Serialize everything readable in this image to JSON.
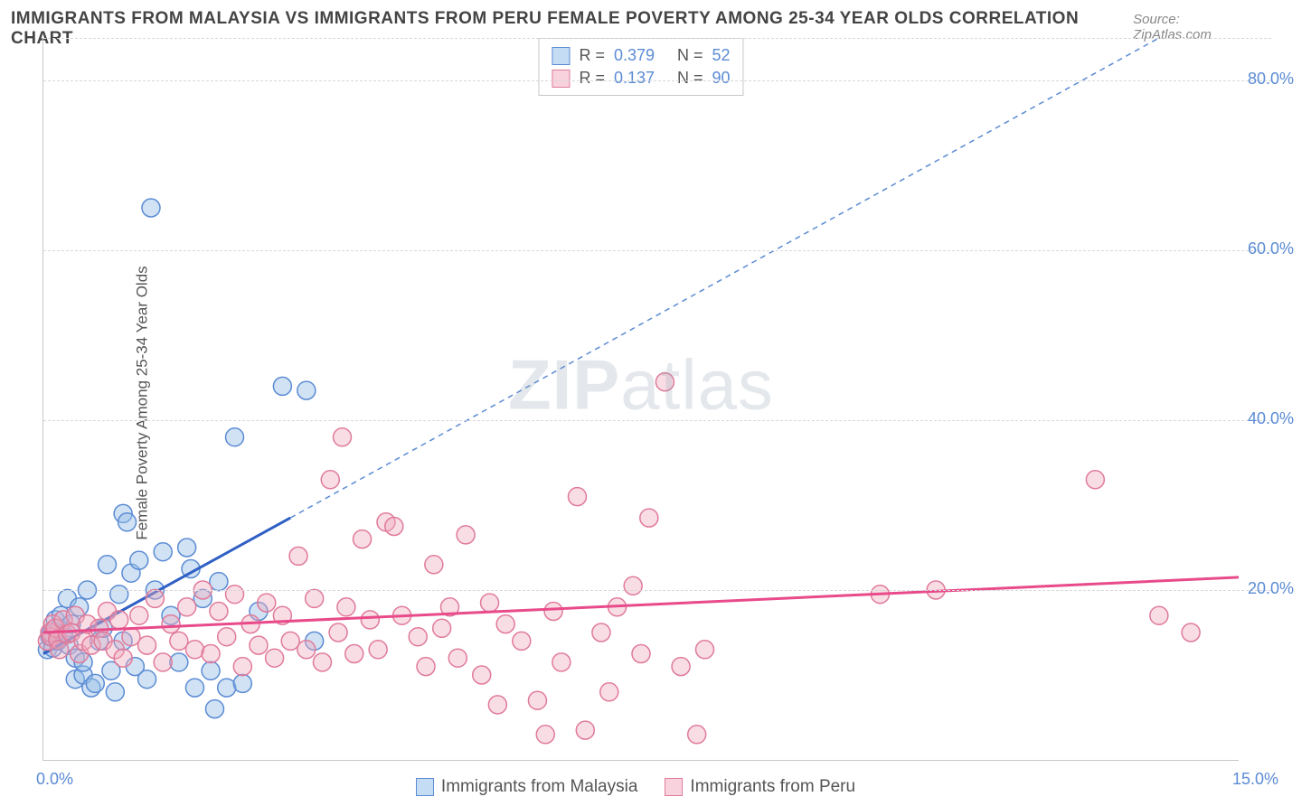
{
  "title": "IMMIGRANTS FROM MALAYSIA VS IMMIGRANTS FROM PERU FEMALE POVERTY AMONG 25-34 YEAR OLDS CORRELATION CHART",
  "source": "Source: ZipAtlas.com",
  "ylabel": "Female Poverty Among 25-34 Year Olds",
  "watermark_bold": "ZIP",
  "watermark_rest": "atlas",
  "chart": {
    "type": "scatter",
    "xlim": [
      0.0,
      15.0
    ],
    "ylim": [
      0.0,
      85.0
    ],
    "x_ticks": [
      {
        "value": 0.0,
        "label": "0.0%"
      },
      {
        "value": 15.0,
        "label": "15.0%"
      }
    ],
    "y_ticks": [
      {
        "value": 20.0,
        "label": "20.0%"
      },
      {
        "value": 40.0,
        "label": "40.0%"
      },
      {
        "value": 60.0,
        "label": "60.0%"
      },
      {
        "value": 80.0,
        "label": "80.0%"
      }
    ],
    "background_color": "#ffffff",
    "grid_color": "#d8d8d8",
    "marker_radius": 10,
    "marker_stroke_width": 1.5,
    "series": [
      {
        "id": "malaysia",
        "label": "Immigrants from Malaysia",
        "color_fill": "rgba(150,190,230,0.45)",
        "color_stroke": "#5b8bd4",
        "swatch_fill": "#c5ddf4",
        "swatch_stroke": "#5b8bd4",
        "R": "0.379",
        "N": "52",
        "trend_solid": {
          "x1": 0.0,
          "y1": 12.5,
          "x2": 3.1,
          "y2": 28.5,
          "color": "#2f5fc4",
          "width": 3
        },
        "trend_dashed": {
          "x1": 3.1,
          "y1": 28.5,
          "x2": 14.0,
          "y2": 85.0,
          "color": "#5b8bd4",
          "width": 1.5,
          "dash": "6,5"
        },
        "points": [
          [
            0.05,
            13.0
          ],
          [
            0.08,
            14.5
          ],
          [
            0.1,
            15.0
          ],
          [
            0.12,
            13.2
          ],
          [
            0.15,
            16.5
          ],
          [
            0.18,
            14.0
          ],
          [
            0.2,
            15.5
          ],
          [
            0.22,
            17.0
          ],
          [
            0.25,
            14.8
          ],
          [
            0.3,
            19.0
          ],
          [
            0.32,
            13.5
          ],
          [
            0.35,
            16.0
          ],
          [
            0.4,
            9.5
          ],
          [
            0.4,
            12.0
          ],
          [
            0.45,
            18.0
          ],
          [
            0.5,
            10.0
          ],
          [
            0.5,
            11.5
          ],
          [
            0.55,
            20.0
          ],
          [
            0.6,
            8.5
          ],
          [
            0.65,
            9.0
          ],
          [
            0.7,
            14.0
          ],
          [
            0.75,
            15.5
          ],
          [
            0.8,
            23.0
          ],
          [
            0.85,
            10.5
          ],
          [
            0.9,
            8.0
          ],
          [
            0.95,
            19.5
          ],
          [
            1.0,
            29.0
          ],
          [
            1.0,
            14.0
          ],
          [
            1.05,
            28.0
          ],
          [
            1.1,
            22.0
          ],
          [
            1.15,
            11.0
          ],
          [
            1.2,
            23.5
          ],
          [
            1.3,
            9.5
          ],
          [
            1.35,
            65.0
          ],
          [
            1.4,
            20.0
          ],
          [
            1.5,
            24.5
          ],
          [
            1.6,
            17.0
          ],
          [
            1.7,
            11.5
          ],
          [
            1.8,
            25.0
          ],
          [
            1.85,
            22.5
          ],
          [
            1.9,
            8.5
          ],
          [
            2.0,
            19.0
          ],
          [
            2.1,
            10.5
          ],
          [
            2.15,
            6.0
          ],
          [
            2.2,
            21.0
          ],
          [
            2.3,
            8.5
          ],
          [
            2.4,
            38.0
          ],
          [
            2.5,
            9.0
          ],
          [
            2.7,
            17.5
          ],
          [
            3.0,
            44.0
          ],
          [
            3.3,
            43.5
          ],
          [
            3.4,
            14.0
          ]
        ]
      },
      {
        "id": "peru",
        "label": "Immigrants from Peru",
        "color_fill": "rgba(240,170,190,0.40)",
        "color_stroke": "#e07a9a",
        "swatch_fill": "#f8d3dd",
        "swatch_stroke": "#e07a9a",
        "R": "0.137",
        "N": "90",
        "trend_solid": {
          "x1": 0.0,
          "y1": 15.0,
          "x2": 15.0,
          "y2": 21.5,
          "color": "#e84a8a",
          "width": 3
        },
        "points": [
          [
            0.05,
            14.0
          ],
          [
            0.08,
            15.0
          ],
          [
            0.1,
            14.5
          ],
          [
            0.12,
            16.0
          ],
          [
            0.15,
            15.5
          ],
          [
            0.18,
            14.2
          ],
          [
            0.2,
            13.0
          ],
          [
            0.25,
            16.5
          ],
          [
            0.3,
            14.8
          ],
          [
            0.35,
            15.0
          ],
          [
            0.4,
            17.0
          ],
          [
            0.45,
            12.5
          ],
          [
            0.5,
            14.0
          ],
          [
            0.55,
            16.0
          ],
          [
            0.6,
            13.5
          ],
          [
            0.7,
            15.5
          ],
          [
            0.75,
            14.0
          ],
          [
            0.8,
            17.5
          ],
          [
            0.9,
            13.0
          ],
          [
            0.95,
            16.5
          ],
          [
            1.0,
            12.0
          ],
          [
            1.1,
            14.5
          ],
          [
            1.2,
            17.0
          ],
          [
            1.3,
            13.5
          ],
          [
            1.4,
            19.0
          ],
          [
            1.5,
            11.5
          ],
          [
            1.6,
            16.0
          ],
          [
            1.7,
            14.0
          ],
          [
            1.8,
            18.0
          ],
          [
            1.9,
            13.0
          ],
          [
            2.0,
            20.0
          ],
          [
            2.1,
            12.5
          ],
          [
            2.2,
            17.5
          ],
          [
            2.3,
            14.5
          ],
          [
            2.4,
            19.5
          ],
          [
            2.5,
            11.0
          ],
          [
            2.6,
            16.0
          ],
          [
            2.7,
            13.5
          ],
          [
            2.8,
            18.5
          ],
          [
            2.9,
            12.0
          ],
          [
            3.0,
            17.0
          ],
          [
            3.1,
            14.0
          ],
          [
            3.2,
            24.0
          ],
          [
            3.3,
            13.0
          ],
          [
            3.4,
            19.0
          ],
          [
            3.5,
            11.5
          ],
          [
            3.6,
            33.0
          ],
          [
            3.7,
            15.0
          ],
          [
            3.75,
            38.0
          ],
          [
            3.8,
            18.0
          ],
          [
            3.9,
            12.5
          ],
          [
            4.0,
            26.0
          ],
          [
            4.1,
            16.5
          ],
          [
            4.2,
            13.0
          ],
          [
            4.3,
            28.0
          ],
          [
            4.4,
            27.5
          ],
          [
            4.5,
            17.0
          ],
          [
            4.7,
            14.5
          ],
          [
            4.8,
            11.0
          ],
          [
            4.9,
            23.0
          ],
          [
            5.0,
            15.5
          ],
          [
            5.1,
            18.0
          ],
          [
            5.2,
            12.0
          ],
          [
            5.3,
            26.5
          ],
          [
            5.5,
            10.0
          ],
          [
            5.6,
            18.5
          ],
          [
            5.7,
            6.5
          ],
          [
            5.8,
            16.0
          ],
          [
            6.0,
            14.0
          ],
          [
            6.2,
            7.0
          ],
          [
            6.3,
            3.0
          ],
          [
            6.4,
            17.5
          ],
          [
            6.5,
            11.5
          ],
          [
            6.7,
            31.0
          ],
          [
            6.8,
            3.5
          ],
          [
            7.0,
            15.0
          ],
          [
            7.1,
            8.0
          ],
          [
            7.2,
            18.0
          ],
          [
            7.4,
            20.5
          ],
          [
            7.5,
            12.5
          ],
          [
            7.6,
            28.5
          ],
          [
            7.8,
            44.5
          ],
          [
            8.0,
            11.0
          ],
          [
            8.2,
            3.0
          ],
          [
            8.3,
            13.0
          ],
          [
            10.5,
            19.5
          ],
          [
            11.2,
            20.0
          ],
          [
            13.2,
            33.0
          ],
          [
            14.0,
            17.0
          ],
          [
            14.4,
            15.0
          ]
        ]
      }
    ]
  },
  "stats_labels": {
    "R": "R =",
    "N": "N ="
  }
}
